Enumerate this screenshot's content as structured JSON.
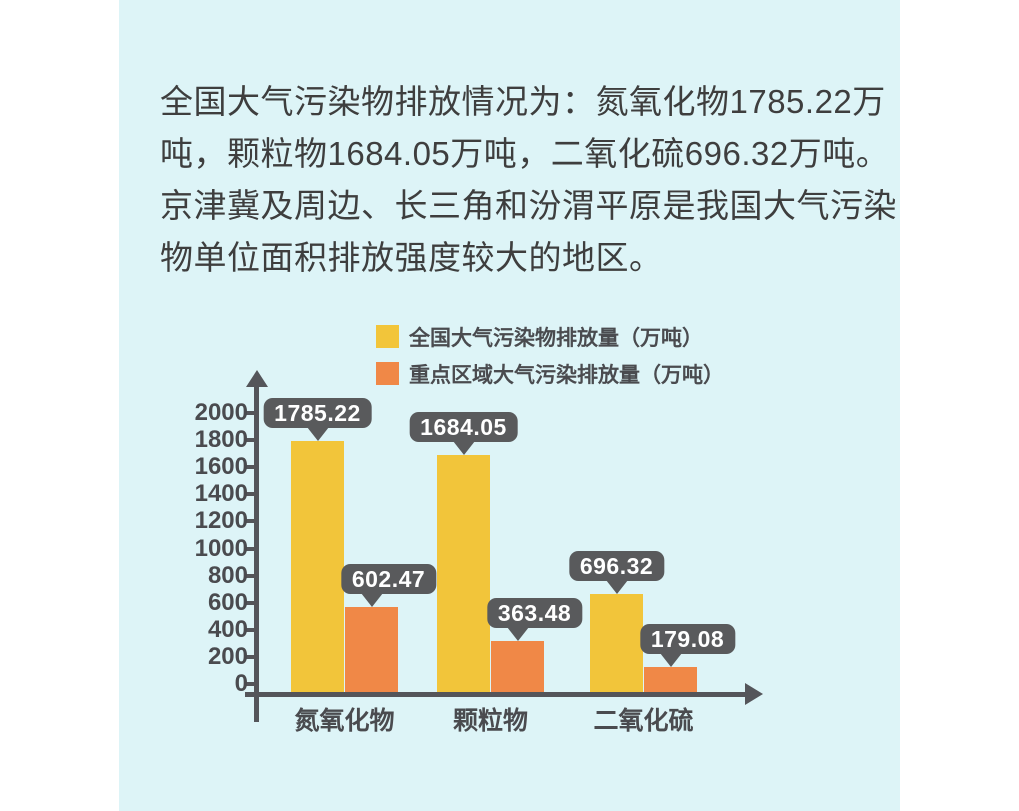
{
  "page": {
    "margin_color": "#ffffff",
    "panel_color": "#ddf4f7"
  },
  "intro": {
    "lines": [
      "全国大气污染物排放情况为：氮氧化物1785.22万",
      "吨，颗粒物1684.05万吨，二氧化硫696.32万吨。",
      "京津冀及周边、长三角和汾渭平原是我国大气污染",
      "物单位面积排放强度较大的地区。"
    ],
    "full_text": "全国大气污染物排放情况为：氮氧化物1785.22万吨，颗粒物1684.05万吨，二氧化硫696.32万吨。京津冀及周边、长三角和汾渭平原是我国大气污染物单位面积排放强度较大的地区。"
  },
  "legend": {
    "items": [
      {
        "label": "全国大气污染物排放量（万吨）",
        "color": "#f2c53a"
      },
      {
        "label": "重点区域大气污染排放量（万吨）",
        "color": "#f08847"
      }
    ]
  },
  "chart_data": {
    "type": "bar",
    "categories": [
      "氮氧化物",
      "颗粒物",
      "二氧化硫"
    ],
    "series": [
      {
        "name": "全国大气污染物排放量（万吨）",
        "color": "#f2c53a",
        "values": [
          1785.22,
          1684.05,
          696.32
        ]
      },
      {
        "name": "重点区域大气污染排放量（万吨）",
        "color": "#f08847",
        "values": [
          602.47,
          363.48,
          179.08
        ]
      }
    ],
    "value_labels": [
      [
        "1785.22",
        "1684.05",
        "696.32"
      ],
      [
        "602.47",
        "363.48",
        "179.08"
      ]
    ],
    "yticks": [
      0,
      200,
      400,
      600,
      800,
      1000,
      1200,
      1400,
      1600,
      1800,
      2000
    ],
    "ylim": [
      0,
      2000
    ],
    "xlabel": "",
    "ylabel": "",
    "grid": false,
    "legend_position": "top",
    "colors": {
      "axis": "#54555a",
      "tick_label": "#4a4b4f",
      "value_bubble": "#595a5c",
      "value_bubble_text": "#ffffff"
    }
  }
}
